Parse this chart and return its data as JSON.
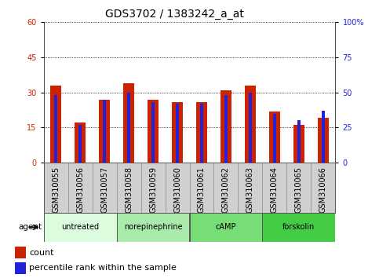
{
  "title": "GDS3702 / 1383242_a_at",
  "categories": [
    "GSM310055",
    "GSM310056",
    "GSM310057",
    "GSM310058",
    "GSM310059",
    "GSM310060",
    "GSM310061",
    "GSM310062",
    "GSM310063",
    "GSM310064",
    "GSM310065",
    "GSM310066"
  ],
  "count_values": [
    33,
    17,
    27,
    34,
    27,
    26,
    26,
    31,
    33,
    22,
    16,
    19
  ],
  "percentile_values": [
    48,
    27,
    45,
    50,
    43,
    42,
    42,
    48,
    50,
    35,
    30,
    37
  ],
  "ylim_left": [
    0,
    60
  ],
  "ylim_right": [
    0,
    100
  ],
  "yticks_left": [
    0,
    15,
    30,
    45,
    60
  ],
  "yticks_right": [
    0,
    25,
    50,
    75,
    100
  ],
  "yticklabels_right": [
    "0",
    "25",
    "50",
    "75",
    "100%"
  ],
  "agent_groups": [
    {
      "label": "untreated",
      "start": 0,
      "end": 3,
      "color": "#ddfcdd"
    },
    {
      "label": "norepinephrine",
      "start": 3,
      "end": 6,
      "color": "#aaeaaa"
    },
    {
      "label": "cAMP",
      "start": 6,
      "end": 9,
      "color": "#77dd77"
    },
    {
      "label": "forskolin",
      "start": 9,
      "end": 12,
      "color": "#44cc44"
    }
  ],
  "count_color": "#cc2200",
  "percentile_color": "#2222dd",
  "grid_color": "#000000",
  "plot_bg_color": "#ffffff",
  "sample_bg_color": "#d0d0d0",
  "left_tick_color": "#cc2200",
  "right_tick_color": "#2222dd",
  "title_fontsize": 10,
  "tick_fontsize": 7,
  "label_fontsize": 7,
  "legend_fontsize": 8
}
